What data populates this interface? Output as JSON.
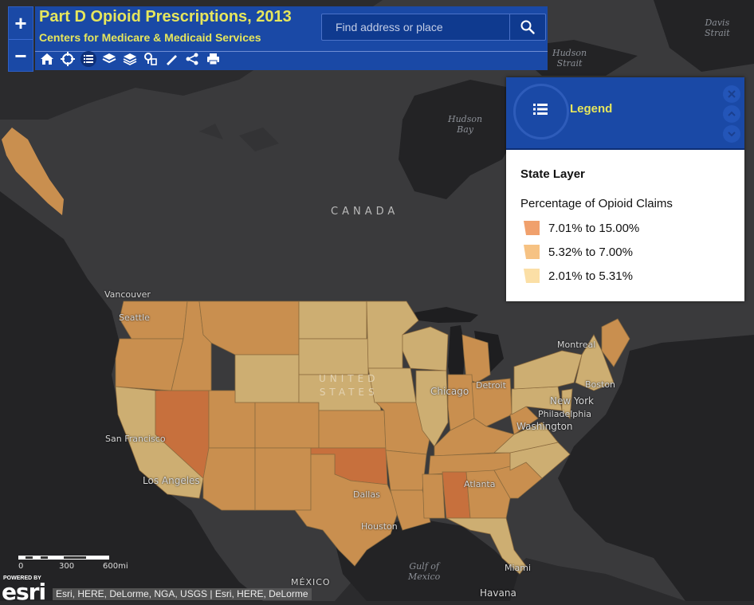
{
  "header": {
    "title": "Part D Opioid Prescriptions, 2013",
    "subtitle": "Centers for Medicare & Medicaid Services",
    "search_placeholder": "Find address or place"
  },
  "zoom": {
    "in": "+",
    "out": "−"
  },
  "toolbar": {
    "tools": [
      "home-icon",
      "locate-icon",
      "legend-list-icon",
      "layers-icon",
      "basemap-icon",
      "bookmarks-icon",
      "measure-icon",
      "share-icon",
      "print-icon"
    ],
    "active": "legend-list-icon"
  },
  "legend": {
    "title": "Legend",
    "layer_name": "State Layer",
    "field_name": "Percentage of Opioid Claims",
    "classes": [
      {
        "label": "7.01% to 15.00%",
        "color": "#f0a06c"
      },
      {
        "label": "5.32% to 7.00%",
        "color": "#f6c283"
      },
      {
        "label": "2.01% to 5.31%",
        "color": "#fbdfa6"
      }
    ]
  },
  "map": {
    "country_labels": {
      "canada": "CANADA",
      "us_line1": "UNITED",
      "us_line2": "STATES",
      "mexico": "MÉXICO"
    },
    "cities": {
      "vancouver": "Vancouver",
      "seattle": "Seattle",
      "san_francisco": "San Francisco",
      "los_angeles": "Los Angeles",
      "dallas": "Dallas",
      "houston": "Houston",
      "chicago": "Chicago",
      "detroit": "Detroit",
      "montreal": "Montreal",
      "boston": "Boston",
      "new_york": "New York",
      "philadelphia": "Philadelphia",
      "washington": "Washington",
      "atlanta": "Atlanta",
      "miami": "Miami",
      "havana": "Havana"
    },
    "water": {
      "davis_1": "Davis",
      "davis_2": "Strait",
      "hudson_strait_1": "Hudson",
      "hudson_strait_2": "Strait",
      "hudson_bay_1": "Hudson",
      "hudson_bay_2": "Bay",
      "gulf_1": "Gulf of",
      "gulf_2": "Mexico"
    },
    "state_colors": {
      "high": "#c7703d",
      "mid": "#c98f4f",
      "low": "#cdae72"
    }
  },
  "scale": {
    "zero": "0",
    "mid": "300",
    "max": "600mi"
  },
  "attribution": {
    "powered_by": "POWERED BY",
    "esri": "esri",
    "text": "Esri, HERE, DeLorme, NGA, USGS | Esri, HERE, DeLorme"
  }
}
